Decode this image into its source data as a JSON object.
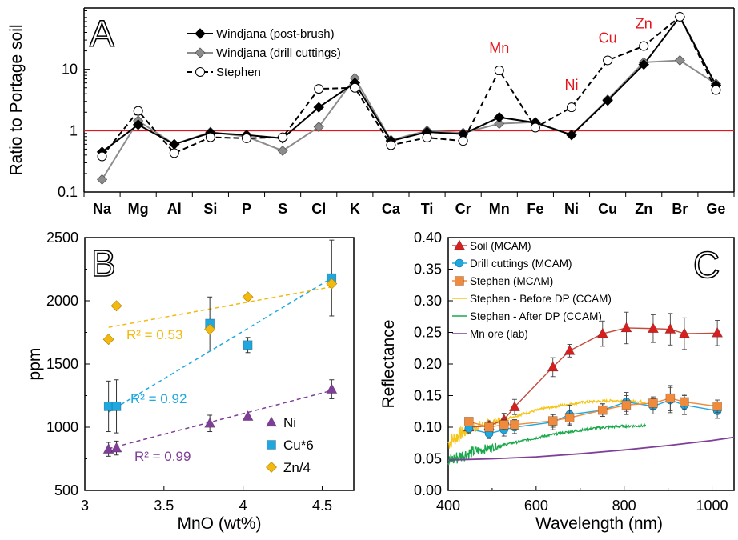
{
  "chart_data": [
    {
      "panel": "A",
      "type": "line",
      "ylabel": "Ratio to Portage soil",
      "yscale": "log",
      "ylim": [
        0.1,
        100
      ],
      "yticks": [
        "0.1",
        "1",
        "10"
      ],
      "categories": [
        "Na",
        "Mg",
        "Al",
        "Si",
        "P",
        "S",
        "Cl",
        "K",
        "Ca",
        "Ti",
        "Cr",
        "Mn",
        "Fe",
        "Ni",
        "Cu",
        "Zn",
        "Br",
        "Ge"
      ],
      "reference_line": 1,
      "series": [
        {
          "name": "Windjana (post-brush)",
          "color": "#000000",
          "marker": "diamond-filled",
          "values": [
            0.45,
            1.25,
            0.6,
            0.92,
            0.85,
            0.75,
            2.4,
            6.0,
            0.68,
            0.95,
            0.88,
            1.65,
            1.35,
            0.85,
            3.1,
            12.0,
            72,
            5.5
          ]
        },
        {
          "name": "Windjana (drill cuttings)",
          "color": "#8c8c8c",
          "marker": "diamond-gray",
          "values": [
            0.16,
            1.45,
            0.6,
            0.95,
            0.8,
            0.47,
            1.15,
            7.2,
            0.7,
            1.0,
            0.92,
            1.3,
            1.38,
            0.85,
            3.2,
            13.0,
            14.0,
            5.8
          ]
        },
        {
          "name": "Stephen",
          "color": "#000000",
          "marker": "circle-open",
          "dashed": true,
          "values": [
            0.38,
            2.1,
            0.43,
            0.78,
            0.75,
            0.78,
            4.8,
            5.0,
            0.58,
            0.77,
            0.68,
            9.6,
            1.12,
            2.4,
            14.0,
            24.0,
            72,
            4.6
          ]
        }
      ],
      "annotations": [
        "Mn",
        "Ni",
        "Cu",
        "Zn"
      ],
      "annotation_color": "#e8141b"
    },
    {
      "panel": "B",
      "type": "scatter",
      "xlabel": "MnO (wt%)",
      "ylabel": "ppm",
      "xlim": [
        3,
        4.7
      ],
      "ylim": [
        500,
        2500
      ],
      "xticks": [
        "3",
        "3.5",
        "4",
        "4.5"
      ],
      "yticks": [
        "500",
        "1000",
        "1500",
        "2000",
        "2500"
      ],
      "series": [
        {
          "name": "Ni",
          "color": "#7f3f98",
          "marker": "triangle",
          "x": [
            3.15,
            3.2,
            3.79,
            4.03,
            4.56
          ],
          "y": [
            825,
            835,
            1030,
            1085,
            1300
          ],
          "err": [
            55,
            55,
            65,
            0,
            75
          ],
          "r2": "R² = 0.99",
          "fit": [
            [
              3.15,
              830
            ],
            [
              4.56,
              1290
            ]
          ]
        },
        {
          "name": "Cu*6",
          "color": "#1fa8e0",
          "marker": "square",
          "x": [
            3.15,
            3.2,
            3.79,
            4.03,
            4.56
          ],
          "y": [
            1165,
            1165,
            1820,
            1650,
            2180
          ],
          "err": [
            200,
            210,
            210,
            60,
            300
          ],
          "r2": "R² = 0.92",
          "fit": [
            [
              3.15,
              1120
            ],
            [
              4.56,
              2180
            ]
          ]
        },
        {
          "name": "Zn/4",
          "color": "#f2b90f",
          "marker": "diamond",
          "x": [
            3.15,
            3.2,
            3.79,
            4.03,
            4.56
          ],
          "y": [
            1695,
            1960,
            1775,
            2030,
            2135
          ],
          "err": [
            0,
            0,
            0,
            0,
            0
          ],
          "r2": "R² = 0.53",
          "fit": [
            [
              3.15,
              1790
            ],
            [
              4.56,
              2110
            ]
          ]
        }
      ]
    },
    {
      "panel": "C",
      "type": "line",
      "xlabel": "Wavelength (nm)",
      "ylabel": "Reflectance",
      "xlim": [
        400,
        1050
      ],
      "ylim": [
        0,
        0.4
      ],
      "xticks": [
        "400",
        "600",
        "800",
        "1000"
      ],
      "yticks": [
        "0.00",
        "0.05",
        "0.10",
        "0.15",
        "0.20",
        "0.25",
        "0.30",
        "0.35",
        "0.40"
      ],
      "series": [
        {
          "name": "Soil (MCAM)",
          "color": "#d62020",
          "line_color": "#c44a3a",
          "marker": "triangle",
          "x": [
            447,
            493,
            527,
            551,
            638,
            676,
            751,
            805,
            866,
            905,
            937,
            1012
          ],
          "y": [
            0.1,
            0.102,
            0.112,
            0.132,
            0.195,
            0.221,
            0.248,
            0.257,
            0.256,
            0.255,
            0.248,
            0.249
          ],
          "err": [
            0.008,
            0.008,
            0.01,
            0.012,
            0.015,
            0.01,
            0.02,
            0.025,
            0.022,
            0.025,
            0.025,
            0.02
          ]
        },
        {
          "name": "Drill cuttings (MCAM)",
          "color": "#1fa8e0",
          "line_color": "#1fa8e0",
          "marker": "circle",
          "x": [
            447,
            493,
            527,
            551,
            638,
            676,
            751,
            805,
            866,
            905,
            937,
            1012
          ],
          "y": [
            0.098,
            0.09,
            0.096,
            0.1,
            0.108,
            0.12,
            0.127,
            0.14,
            0.133,
            0.143,
            0.135,
            0.126
          ],
          "err": [
            0.008,
            0.008,
            0.01,
            0.01,
            0.012,
            0.015,
            0.01,
            0.015,
            0.012,
            0.02,
            0.015,
            0.012
          ]
        },
        {
          "name": "Stephen (MCAM)",
          "color": "#f08a3c",
          "line_color": "#f08a3c",
          "marker": "square",
          "x": [
            447,
            493,
            527,
            551,
            638,
            676,
            751,
            805,
            866,
            905,
            937,
            1012
          ],
          "y": [
            0.109,
            0.1,
            0.104,
            0.104,
            0.11,
            0.115,
            0.127,
            0.135,
            0.138,
            0.146,
            0.14,
            0.133
          ],
          "err": [
            0.005,
            0.006,
            0.008,
            0.008,
            0.01,
            0.012,
            0.01,
            0.015,
            0.01,
            0.02,
            0.012,
            0.01
          ]
        },
        {
          "name": "Stephen - Before DP (CCAM)",
          "color": "#f5c518",
          "style": "noisy",
          "x": [
            400,
            430,
            460,
            500,
            540,
            580,
            620,
            660,
            700,
            740,
            780,
            820,
            850
          ],
          "y": [
            0.075,
            0.09,
            0.1,
            0.108,
            0.115,
            0.123,
            0.13,
            0.135,
            0.139,
            0.141,
            0.142,
            0.141,
            0.14
          ]
        },
        {
          "name": "Stephen - After DP (CCAM)",
          "color": "#1aa84c",
          "style": "noisy",
          "x": [
            400,
            430,
            460,
            500,
            540,
            580,
            620,
            660,
            700,
            740,
            780,
            820,
            850
          ],
          "y": [
            0.045,
            0.055,
            0.062,
            0.068,
            0.074,
            0.08,
            0.086,
            0.091,
            0.095,
            0.099,
            0.101,
            0.102,
            0.102
          ]
        },
        {
          "name": "Mn ore (lab)",
          "color": "#7f3f98",
          "style": "line",
          "x": [
            400,
            500,
            600,
            700,
            800,
            900,
            1000,
            1050
          ],
          "y": [
            0.048,
            0.05,
            0.053,
            0.058,
            0.064,
            0.071,
            0.079,
            0.084
          ]
        }
      ]
    }
  ]
}
